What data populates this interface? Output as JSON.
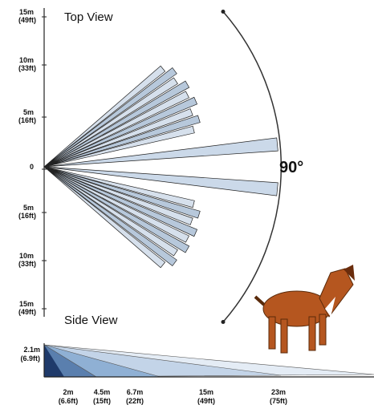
{
  "top_view": {
    "title": "Top View",
    "y_labels": [
      {
        "m": "15m",
        "ft": "(49ft)"
      },
      {
        "m": "10m",
        "ft": "(33ft)"
      },
      {
        "m": "5m",
        "ft": "(16ft)"
      },
      {
        "m": "0"
      },
      {
        "m": "5m",
        "ft": "(16ft)"
      },
      {
        "m": "10m",
        "ft": "(33ft)"
      },
      {
        "m": "15m",
        "ft": "(49ft)"
      }
    ],
    "angle": "90°"
  },
  "side_view": {
    "title": "Side View",
    "height": {
      "m": "2.1m",
      "ft": "(6.9ft)"
    },
    "distances": [
      {
        "m": "2m",
        "ft": "(6.6ft)"
      },
      {
        "m": "4.5m",
        "ft": "(15ft)"
      },
      {
        "m": "6.7m",
        "ft": "(22ft)"
      },
      {
        "m": "15m",
        "ft": "(49ft)"
      },
      {
        "m": "23m",
        "ft": "(75ft)"
      }
    ]
  }
}
